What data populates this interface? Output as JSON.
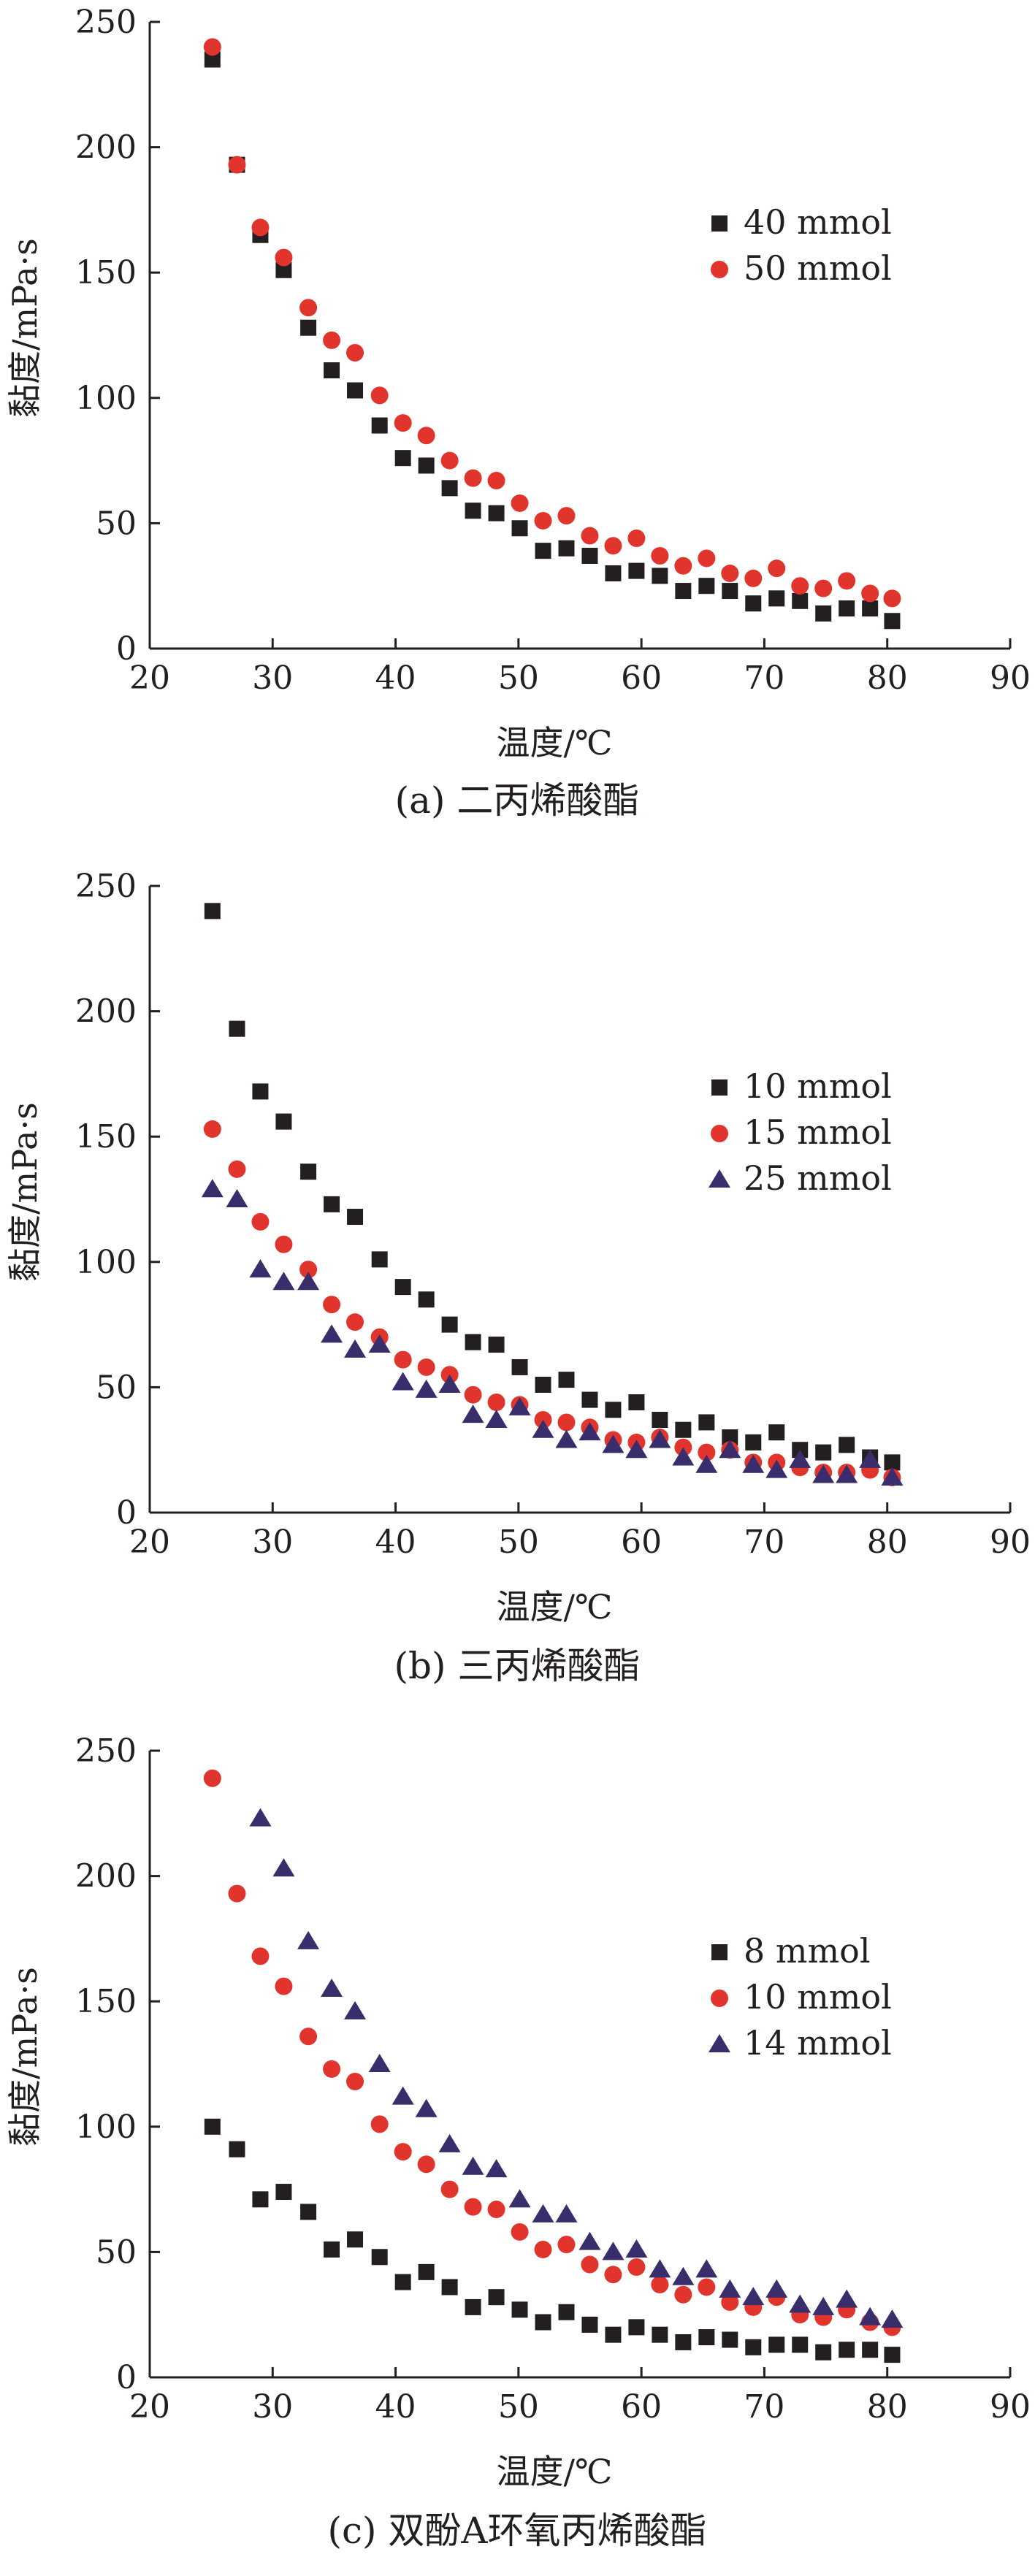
{
  "chart_data": [
    {
      "type": "scatter",
      "caption": "(a) 二丙烯酸酯",
      "xlabel": "温度/℃",
      "ylabel": "黏度/mPa·s",
      "xlim": [
        20,
        90
      ],
      "ylim": [
        0,
        250
      ],
      "xticks": [
        20,
        30,
        40,
        50,
        60,
        70,
        80,
        90
      ],
      "yticks": [
        0,
        50,
        100,
        150,
        200,
        250
      ],
      "grid": false,
      "legend": "right",
      "series": [
        {
          "name": "40 mmol",
          "marker": "square",
          "color": "#231f20",
          "x": [
            25.1,
            27.1,
            29.0,
            30.9,
            32.9,
            34.8,
            36.7,
            38.7,
            40.6,
            42.5,
            44.4,
            46.3,
            48.2,
            50.1,
            52.0,
            53.9,
            55.8,
            57.7,
            59.6,
            61.5,
            63.4,
            65.3,
            67.2,
            69.1,
            71.0,
            72.9,
            74.8,
            76.7,
            78.6,
            80.4
          ],
          "values": [
            235,
            193,
            165,
            151,
            128,
            111,
            103,
            89,
            76,
            73,
            64,
            55,
            54,
            48,
            39,
            40,
            37,
            30,
            31,
            29,
            23,
            25,
            23,
            18,
            20,
            19,
            14,
            16,
            16,
            11
          ]
        },
        {
          "name": "50 mmol",
          "marker": "circle",
          "color": "#e0342d",
          "x": [
            25.1,
            27.1,
            29.0,
            30.9,
            32.9,
            34.8,
            36.7,
            38.7,
            40.6,
            42.5,
            44.4,
            46.3,
            48.2,
            50.1,
            52.0,
            53.9,
            55.8,
            57.7,
            59.6,
            61.5,
            63.4,
            65.3,
            67.2,
            69.1,
            71.0,
            72.9,
            74.8,
            76.7,
            78.6,
            80.4
          ],
          "values": [
            240,
            193,
            168,
            156,
            136,
            123,
            118,
            101,
            90,
            85,
            75,
            68,
            67,
            58,
            51,
            53,
            45,
            41,
            44,
            37,
            33,
            36,
            30,
            28,
            32,
            25,
            24,
            27,
            22,
            20
          ]
        }
      ]
    },
    {
      "type": "scatter",
      "caption": "(b) 三丙烯酸酯",
      "xlabel": "温度/℃",
      "ylabel": "黏度/mPa·s",
      "xlim": [
        20,
        90
      ],
      "ylim": [
        0,
        250
      ],
      "xticks": [
        20,
        30,
        40,
        50,
        60,
        70,
        80,
        90
      ],
      "yticks": [
        0,
        50,
        100,
        150,
        200,
        250
      ],
      "grid": false,
      "legend": "right",
      "series": [
        {
          "name": "10 mmol",
          "marker": "square",
          "color": "#231f20",
          "x": [
            25.1,
            27.1,
            29.0,
            30.9,
            32.9,
            34.8,
            36.7,
            38.7,
            40.6,
            42.5,
            44.4,
            46.3,
            48.2,
            50.1,
            52.0,
            53.9,
            55.8,
            57.7,
            59.6,
            61.5,
            63.4,
            65.3,
            67.2,
            69.1,
            71.0,
            72.9,
            74.8,
            76.7,
            78.6,
            80.4
          ],
          "values": [
            240,
            193,
            168,
            156,
            136,
            123,
            118,
            101,
            90,
            85,
            75,
            68,
            67,
            58,
            51,
            53,
            45,
            41,
            44,
            37,
            33,
            36,
            30,
            28,
            32,
            25,
            24,
            27,
            22,
            20
          ]
        },
        {
          "name": "15 mmol",
          "marker": "circle",
          "color": "#e0342d",
          "x": [
            25.1,
            27.1,
            29.0,
            30.9,
            32.9,
            34.8,
            36.7,
            38.7,
            40.6,
            42.5,
            44.4,
            46.3,
            48.2,
            50.1,
            52.0,
            53.9,
            55.8,
            57.7,
            59.6,
            61.5,
            63.4,
            65.3,
            67.2,
            69.1,
            71.0,
            72.9,
            74.8,
            76.7,
            78.6,
            80.4
          ],
          "values": [
            153,
            137,
            116,
            107,
            97,
            83,
            76,
            70,
            61,
            58,
            55,
            47,
            44,
            43,
            37,
            36,
            34,
            29,
            28,
            30,
            26,
            24,
            25,
            20,
            20,
            18,
            16,
            16,
            17,
            14
          ]
        },
        {
          "name": "25 mmol",
          "marker": "triangle",
          "color": "#3a2d6b",
          "x": [
            25.1,
            27.1,
            29.0,
            30.9,
            32.9,
            34.8,
            36.7,
            38.7,
            40.6,
            42.5,
            44.4,
            46.3,
            48.2,
            50.1,
            52.0,
            53.9,
            55.8,
            57.7,
            59.6,
            61.5,
            63.4,
            65.3,
            67.2,
            69.1,
            71.0,
            72.9,
            74.8,
            76.7,
            78.6,
            80.4
          ],
          "values": [
            129,
            125,
            97,
            92,
            92,
            71,
            65,
            67,
            52,
            49,
            51,
            39,
            37,
            42,
            33,
            29,
            32,
            27,
            25,
            29,
            22,
            19,
            25,
            19,
            17,
            21,
            15,
            15,
            21,
            14
          ]
        }
      ]
    },
    {
      "type": "scatter",
      "caption": "(c) 双酚A环氧丙烯酸酯",
      "xlabel": "温度/℃",
      "ylabel": "黏度/mPa·s",
      "xlim": [
        20,
        90
      ],
      "ylim": [
        0,
        250
      ],
      "xticks": [
        20,
        30,
        40,
        50,
        60,
        70,
        80,
        90
      ],
      "yticks": [
        0,
        50,
        100,
        150,
        200,
        250
      ],
      "grid": false,
      "legend": "right",
      "series": [
        {
          "name": "8 mmol",
          "marker": "square",
          "color": "#231f20",
          "x": [
            25.1,
            27.1,
            29.0,
            30.9,
            32.9,
            34.8,
            36.7,
            38.7,
            40.6,
            42.5,
            44.4,
            46.3,
            48.2,
            50.1,
            52.0,
            53.9,
            55.8,
            57.7,
            59.6,
            61.5,
            63.4,
            65.3,
            67.2,
            69.1,
            71.0,
            72.9,
            74.8,
            76.7,
            78.6,
            80.4
          ],
          "values": [
            100,
            91,
            71,
            74,
            66,
            51,
            55,
            48,
            38,
            42,
            36,
            28,
            32,
            27,
            22,
            26,
            21,
            17,
            20,
            17,
            14,
            16,
            15,
            12,
            13,
            13,
            10,
            11,
            11,
            9
          ]
        },
        {
          "name": "10 mmol",
          "marker": "circle",
          "color": "#e0342d",
          "x": [
            25.1,
            27.1,
            29.0,
            30.9,
            32.9,
            34.8,
            36.7,
            38.7,
            40.6,
            42.5,
            44.4,
            46.3,
            48.2,
            50.1,
            52.0,
            53.9,
            55.8,
            57.7,
            59.6,
            61.5,
            63.4,
            65.3,
            67.2,
            69.1,
            71.0,
            72.9,
            74.8,
            76.7,
            78.6,
            80.4
          ],
          "values": [
            239,
            193,
            168,
            156,
            136,
            123,
            118,
            101,
            90,
            85,
            75,
            68,
            67,
            58,
            51,
            53,
            45,
            41,
            44,
            37,
            33,
            36,
            30,
            28,
            32,
            25,
            24,
            27,
            22,
            20
          ]
        },
        {
          "name": "14 mmol",
          "marker": "triangle",
          "color": "#3a2d6b",
          "x": [
            29.0,
            30.9,
            32.9,
            34.8,
            36.7,
            38.7,
            40.6,
            42.5,
            44.4,
            46.3,
            48.2,
            50.1,
            52.0,
            53.9,
            55.8,
            57.7,
            59.6,
            61.5,
            63.4,
            65.3,
            67.2,
            69.1,
            71.0,
            72.9,
            74.8,
            76.7,
            78.6,
            80.4
          ],
          "values": [
            223,
            203,
            174,
            155,
            146,
            125,
            112,
            107,
            93,
            84,
            83,
            71,
            65,
            65,
            54,
            50,
            51,
            43,
            40,
            43,
            35,
            32,
            35,
            29,
            28,
            31,
            24,
            23
          ]
        }
      ]
    }
  ]
}
